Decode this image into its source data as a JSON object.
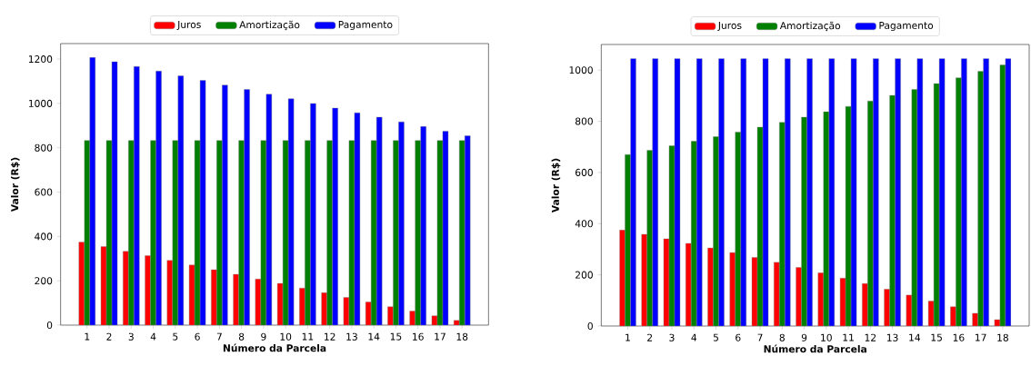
{
  "chart_data": [
    {
      "type": "bar",
      "categories": [
        "1",
        "2",
        "3",
        "4",
        "5",
        "6",
        "7",
        "8",
        "9",
        "10",
        "11",
        "12",
        "13",
        "14",
        "15",
        "16",
        "17",
        "18"
      ],
      "xlabel": "Número da Parcela",
      "ylabel": "Valor (R$)",
      "ylim": [
        0,
        1270
      ],
      "yticks": [
        0,
        200,
        400,
        600,
        800,
        1000,
        1200
      ],
      "legend": "top",
      "grid": false,
      "series": [
        {
          "name": "Juros",
          "color": "#ff0000",
          "values": [
            375,
            354,
            333,
            313,
            292,
            271,
            250,
            229,
            208,
            188,
            167,
            146,
            125,
            104,
            83,
            63,
            42,
            21
          ]
        },
        {
          "name": "Amortização",
          "color": "#008000",
          "values": [
            833,
            833,
            833,
            833,
            833,
            833,
            833,
            833,
            833,
            833,
            833,
            833,
            833,
            833,
            833,
            833,
            833,
            833
          ]
        },
        {
          "name": "Pagamento",
          "color": "#0000ff",
          "values": [
            1208,
            1188,
            1167,
            1146,
            1125,
            1104,
            1083,
            1063,
            1042,
            1021,
            1000,
            979,
            958,
            938,
            917,
            896,
            875,
            854
          ]
        }
      ]
    },
    {
      "type": "bar",
      "categories": [
        "1",
        "2",
        "3",
        "4",
        "5",
        "6",
        "7",
        "8",
        "9",
        "10",
        "11",
        "12",
        "13",
        "14",
        "15",
        "16",
        "17",
        "18"
      ],
      "xlabel": "Número da Parcela",
      "ylabel": "Valor (R$)",
      "ylim": [
        0,
        1100
      ],
      "yticks": [
        0,
        200,
        400,
        600,
        800,
        1000
      ],
      "legend": "top",
      "grid": false,
      "series": [
        {
          "name": "Juros",
          "color": "#ff0000",
          "values": [
            375,
            358,
            341,
            323,
            305,
            287,
            268,
            249,
            229,
            208,
            187,
            166,
            144,
            121,
            98,
            75,
            50,
            25
          ]
        },
        {
          "name": "Amortização",
          "color": "#008000",
          "values": [
            670,
            687,
            704,
            722,
            740,
            758,
            777,
            796,
            816,
            837,
            858,
            879,
            901,
            924,
            947,
            970,
            995,
            1020
          ]
        },
        {
          "name": "Pagamento",
          "color": "#0000ff",
          "values": [
            1045,
            1045,
            1045,
            1045,
            1045,
            1045,
            1045,
            1045,
            1045,
            1045,
            1045,
            1045,
            1045,
            1045,
            1045,
            1045,
            1045,
            1045
          ]
        }
      ]
    }
  ]
}
